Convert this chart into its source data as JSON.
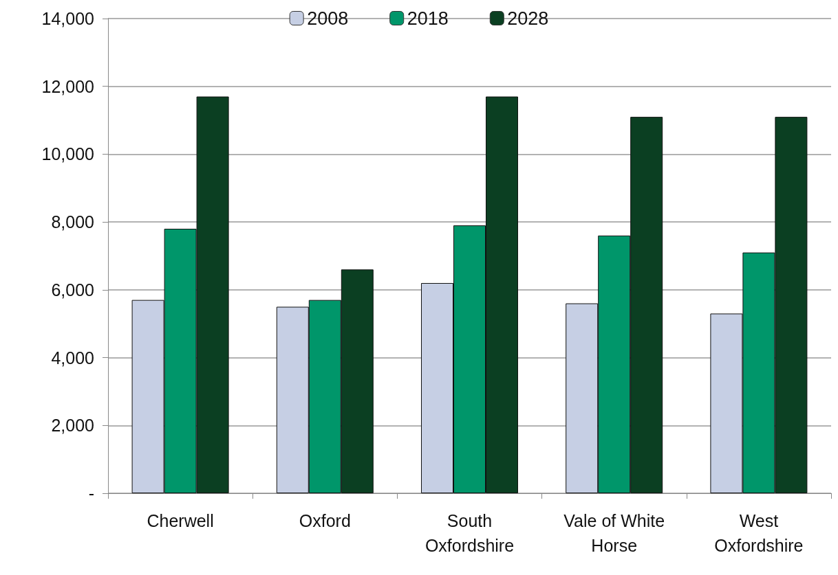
{
  "chart_data": {
    "type": "bar",
    "categories": [
      "Cherwell",
      "Oxford",
      "South\nOxfordshire",
      "Vale of White\nHorse",
      "West\nOxfordshire"
    ],
    "series": [
      {
        "name": "2008",
        "color": "#c6cfe4",
        "values": [
          5700,
          5500,
          6200,
          5600,
          5300
        ]
      },
      {
        "name": "2018",
        "color": "#00966a",
        "values": [
          7800,
          5700,
          7900,
          7600,
          7100
        ]
      },
      {
        "name": "2028",
        "color": "#0b3f22",
        "values": [
          11700,
          6600,
          11700,
          11100,
          11100
        ]
      }
    ],
    "ylim": [
      0,
      14000
    ],
    "yticks": [
      {
        "value": 0,
        "label": "-"
      },
      {
        "value": 2000,
        "label": "2,000"
      },
      {
        "value": 4000,
        "label": "4,000"
      },
      {
        "value": 6000,
        "label": "6,000"
      },
      {
        "value": 8000,
        "label": "8,000"
      },
      {
        "value": 10000,
        "label": "10,000"
      },
      {
        "value": 12000,
        "label": "12,000"
      },
      {
        "value": 14000,
        "label": "14,000"
      }
    ],
    "grid": "y",
    "legend": "top"
  }
}
